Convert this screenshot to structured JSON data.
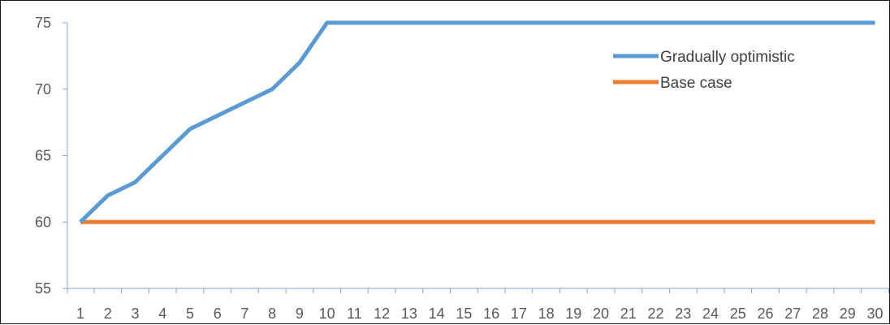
{
  "chart_data": {
    "type": "line",
    "title": "",
    "xlabel": "",
    "ylabel": "",
    "x": [
      1,
      2,
      3,
      4,
      5,
      6,
      7,
      8,
      9,
      10,
      11,
      12,
      13,
      14,
      15,
      16,
      17,
      18,
      19,
      20,
      21,
      22,
      23,
      24,
      25,
      26,
      27,
      28,
      29,
      30
    ],
    "ylim": [
      55,
      75
    ],
    "yticks": [
      55,
      60,
      65,
      70,
      75
    ],
    "grid": false,
    "legend": "top-right",
    "series": [
      {
        "name": "Gradually optimistic",
        "color": "#5B9BD5",
        "values": [
          60,
          62,
          63,
          65,
          67,
          68,
          69,
          70,
          72,
          75,
          75,
          75,
          75,
          75,
          75,
          75,
          75,
          75,
          75,
          75,
          75,
          75,
          75,
          75,
          75,
          75,
          75,
          75,
          75,
          75
        ]
      },
      {
        "name": "Base case",
        "color": "#ED7D31",
        "values": [
          60,
          60,
          60,
          60,
          60,
          60,
          60,
          60,
          60,
          60,
          60,
          60,
          60,
          60,
          60,
          60,
          60,
          60,
          60,
          60,
          60,
          60,
          60,
          60,
          60,
          60,
          60,
          60,
          60,
          60
        ]
      }
    ],
    "axis_color": "#7FA7D6"
  }
}
